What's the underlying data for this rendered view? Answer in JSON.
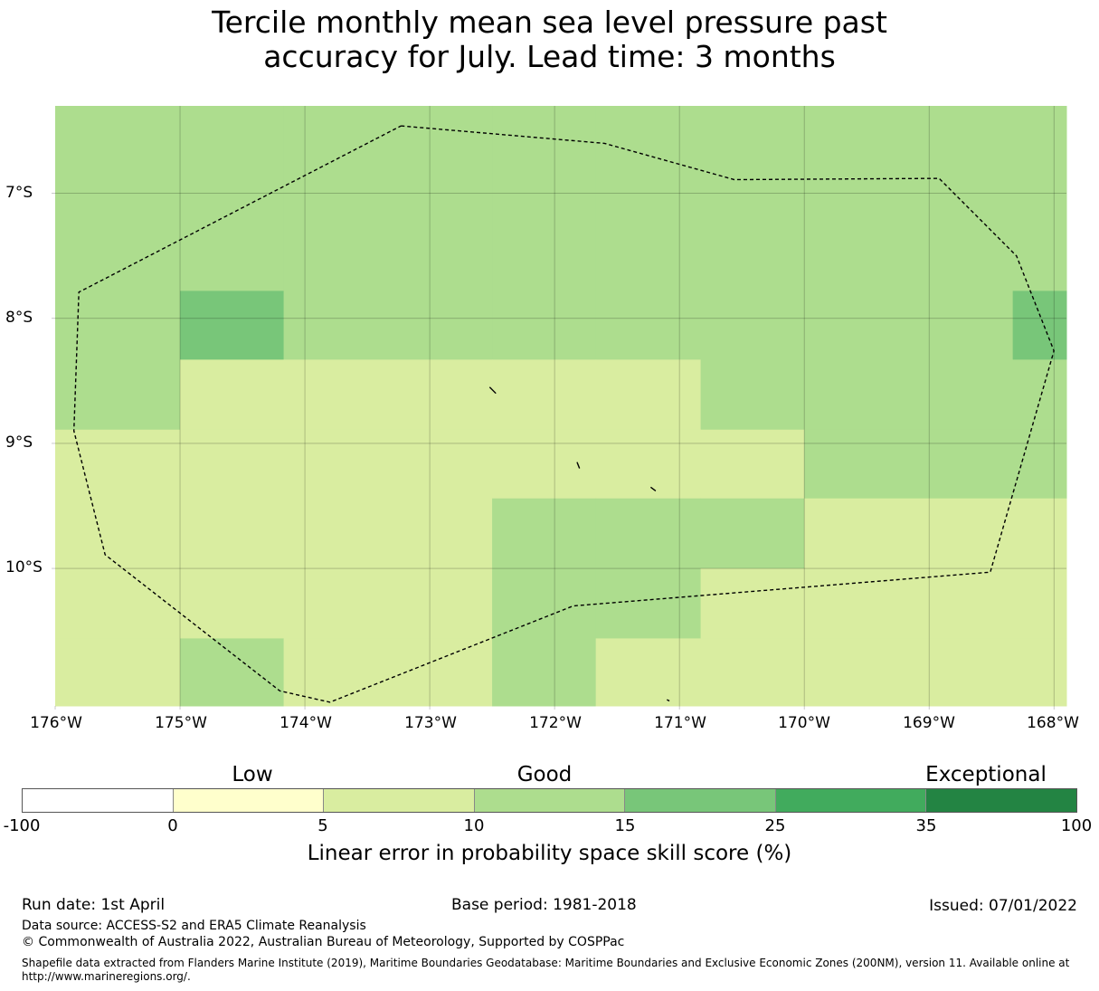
{
  "title": {
    "line1": "Tercile monthly mean sea level pressure past",
    "line2": "accuracy for July. Lead time: 3 months"
  },
  "map": {
    "lat_labels": [
      "7°S",
      "8°S",
      "9°S",
      "10°S"
    ],
    "lon_labels": [
      "176°W",
      "175°W",
      "174°W",
      "173°W",
      "172°W",
      "171°W",
      "170°W",
      "169°W",
      "168°W"
    ],
    "extent": {
      "lon_min": -176,
      "lon_max": -167.9,
      "lat_max": -6.3,
      "lat_min": -11.1
    },
    "cell_grid": {
      "lon_edges": [
        -176,
        -175,
        -174.17,
        -172.5,
        -171.67,
        -170.83,
        -170,
        -168.33,
        -167.9
      ],
      "lat_edges": [
        -6.3,
        -7.78,
        -8.33,
        -8.89,
        -9.44,
        -10.0,
        -10.56,
        -11.1
      ],
      "score_class": [
        [
          "10-15",
          "10-15",
          "10-15",
          "10-15",
          "10-15",
          "10-15",
          "10-15",
          "10-15"
        ],
        [
          "10-15",
          "15-25",
          "10-15",
          "10-15",
          "10-15",
          "10-15",
          "10-15",
          "15-25"
        ],
        [
          "10-15",
          "5-10",
          "5-10",
          "5-10",
          "5-10",
          "10-15",
          "10-15",
          "10-15"
        ],
        [
          "5-10",
          "5-10",
          "5-10",
          "5-10",
          "5-10",
          "5-10",
          "10-15",
          "10-15"
        ],
        [
          "5-10",
          "5-10",
          "5-10",
          "10-15",
          "10-15",
          "10-15",
          "5-10",
          "5-10"
        ],
        [
          "5-10",
          "5-10",
          "5-10",
          "10-15",
          "10-15",
          "5-10",
          "5-10",
          "5-10"
        ],
        [
          "5-10",
          "10-15",
          "5-10",
          "10-15",
          "5-10",
          "5-10",
          "5-10",
          "5-10"
        ]
      ]
    },
    "class_colors": {
      "5-10": "#d9eda0",
      "10-15": "#addd8e",
      "15-25": "#78c679"
    },
    "eez_boundary": [
      [
        -173.23,
        -6.46
      ],
      [
        -171.6,
        -6.6
      ],
      [
        -170.56,
        -6.89
      ],
      [
        -168.92,
        -6.88
      ],
      [
        -168.3,
        -7.5
      ],
      [
        -168.0,
        -8.26
      ],
      [
        -168.51,
        -10.03
      ],
      [
        -171.85,
        -10.3
      ],
      [
        -173.8,
        -11.07
      ],
      [
        -174.2,
        -10.98
      ],
      [
        -175.6,
        -9.89
      ],
      [
        -175.85,
        -8.9
      ],
      [
        -175.81,
        -7.79
      ],
      [
        -173.23,
        -6.46
      ]
    ],
    "islands": [
      [
        [
          -172.52,
          -8.55
        ],
        [
          -172.47,
          -8.6
        ]
      ],
      [
        [
          -171.82,
          -9.15
        ],
        [
          -171.8,
          -9.2
        ]
      ],
      [
        [
          -171.23,
          -9.35
        ],
        [
          -171.19,
          -9.38
        ]
      ],
      [
        [
          -171.1,
          -11.05
        ],
        [
          -171.08,
          -11.06
        ]
      ]
    ]
  },
  "legend": {
    "categories": [
      "Low",
      "Good",
      "Exceptional"
    ],
    "ticks": [
      "-100",
      "0",
      "5",
      "10",
      "15",
      "25",
      "35",
      "100"
    ],
    "colors": [
      "#ffffff",
      "#ffffcc",
      "#d9eda0",
      "#addd8e",
      "#78c679",
      "#41ab5d",
      "#238443"
    ],
    "label": "Linear error in probability space skill score (%)"
  },
  "footer": {
    "run_date": "Run date: 1st April",
    "base_period": "Base period: 1981-2018",
    "issued": "Issued: 07/01/2022",
    "data_source": "Data source: ACCESS-S2 and ERA5 Climate Reanalysis",
    "copyright": "© Commonwealth of Australia 2022, Australian Bureau of Meteorology, Supported by COSPPac",
    "shapefile": "Shapefile data extracted from Flanders Marine Institute (2019), Maritime Boundaries Geodatabase: Maritime Boundaries and Exclusive Economic Zones (200NM), version 11. Available online at http://www.marineregions.org/."
  }
}
